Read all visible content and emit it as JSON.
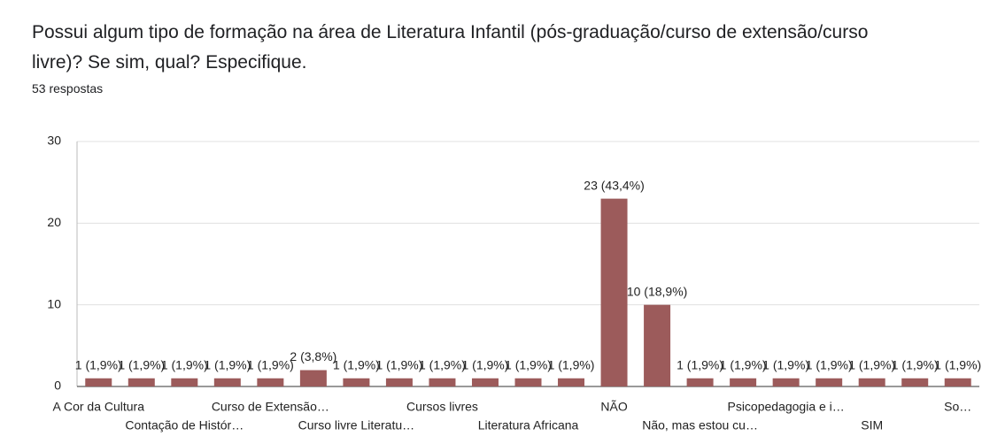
{
  "chart_data": {
    "type": "bar",
    "title": "Possui algum tipo de formação na área de Literatura Infantil (pós-graduação/curso de extensão/curso livre)? Se sim, qual? Especifique.",
    "subtitle": "53 respostas",
    "categories": [
      "A Cor da Cultura",
      null,
      "Contação de Histór…",
      null,
      "Curso de Extensão…",
      null,
      "Curso livre Literatu…",
      null,
      "Cursos livres",
      null,
      "Literatura Africana",
      null,
      "NÃO",
      null,
      "Não, mas estou cu…",
      null,
      "Psicopedagogia e i…",
      null,
      "SIM",
      null,
      "So…"
    ],
    "values": [
      1,
      1,
      1,
      1,
      1,
      2,
      1,
      1,
      1,
      1,
      1,
      1,
      23,
      10,
      1,
      1,
      1,
      1,
      1,
      1,
      1
    ],
    "value_labels": [
      "1 (1,9%)",
      "1 (1,9%)",
      "1 (1,9%)",
      "1 (1,9%)",
      "1 (1,9%)",
      "2 (3,8%)",
      "1 (1,9%)",
      "1 (1,9%)",
      "1 (1,9%)",
      "1 (1,9%)",
      "1 (1,9%)",
      "1 (1,9%)",
      "23 (43,4%)",
      "10 (18,9%)",
      "1 (1,9%)",
      "1 (1,9%)",
      "1 (1,9%)",
      "1 (1,9%)",
      "1 (1,9%)",
      "1 (1,9%)",
      "1 (1,9%)"
    ],
    "color": "#9c5b5b",
    "ylim": [
      0,
      30
    ],
    "yticks": [
      0,
      10,
      20,
      30
    ],
    "grid": true
  }
}
